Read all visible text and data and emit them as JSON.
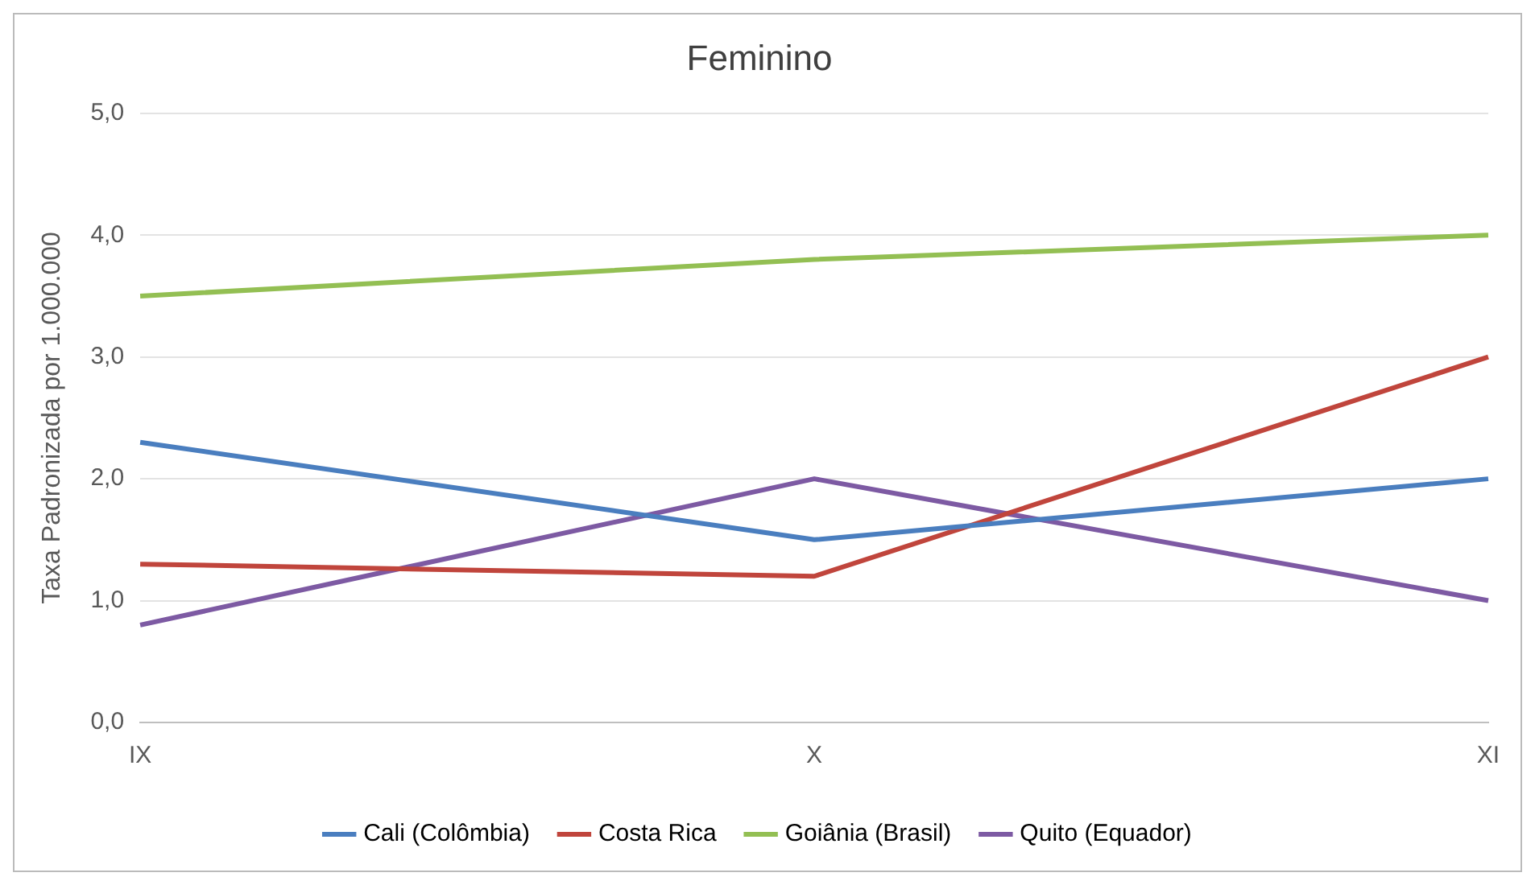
{
  "chart_data": {
    "type": "line",
    "title": "Feminino",
    "ylabel": "Taxa Padronizada por 1.000.000",
    "categories": [
      "IX",
      "X",
      "XI"
    ],
    "series": [
      {
        "name": "Cali (Colômbia)",
        "color": "#4a7ebf",
        "values": [
          2.3,
          1.5,
          2.0
        ]
      },
      {
        "name": "Costa Rica",
        "color": "#c0453c",
        "values": [
          1.3,
          1.2,
          3.0
        ]
      },
      {
        "name": "Goiânia (Brasil)",
        "color": "#93bf53",
        "values": [
          3.5,
          3.8,
          4.0
        ]
      },
      {
        "name": "Quito (Equador)",
        "color": "#7d5aa3",
        "values": [
          0.8,
          2.0,
          1.0
        ]
      }
    ],
    "ylim": [
      0,
      5
    ],
    "yticks": [
      {
        "value": 0,
        "label": "0,0"
      },
      {
        "value": 1,
        "label": "1,0"
      },
      {
        "value": 2,
        "label": "2,0"
      },
      {
        "value": 3,
        "label": "3,0"
      },
      {
        "value": 4,
        "label": "4,0"
      },
      {
        "value": 5,
        "label": "5,0"
      }
    ],
    "grid": "y",
    "legend": "bottom",
    "marker": "none",
    "line_style": "solid"
  }
}
